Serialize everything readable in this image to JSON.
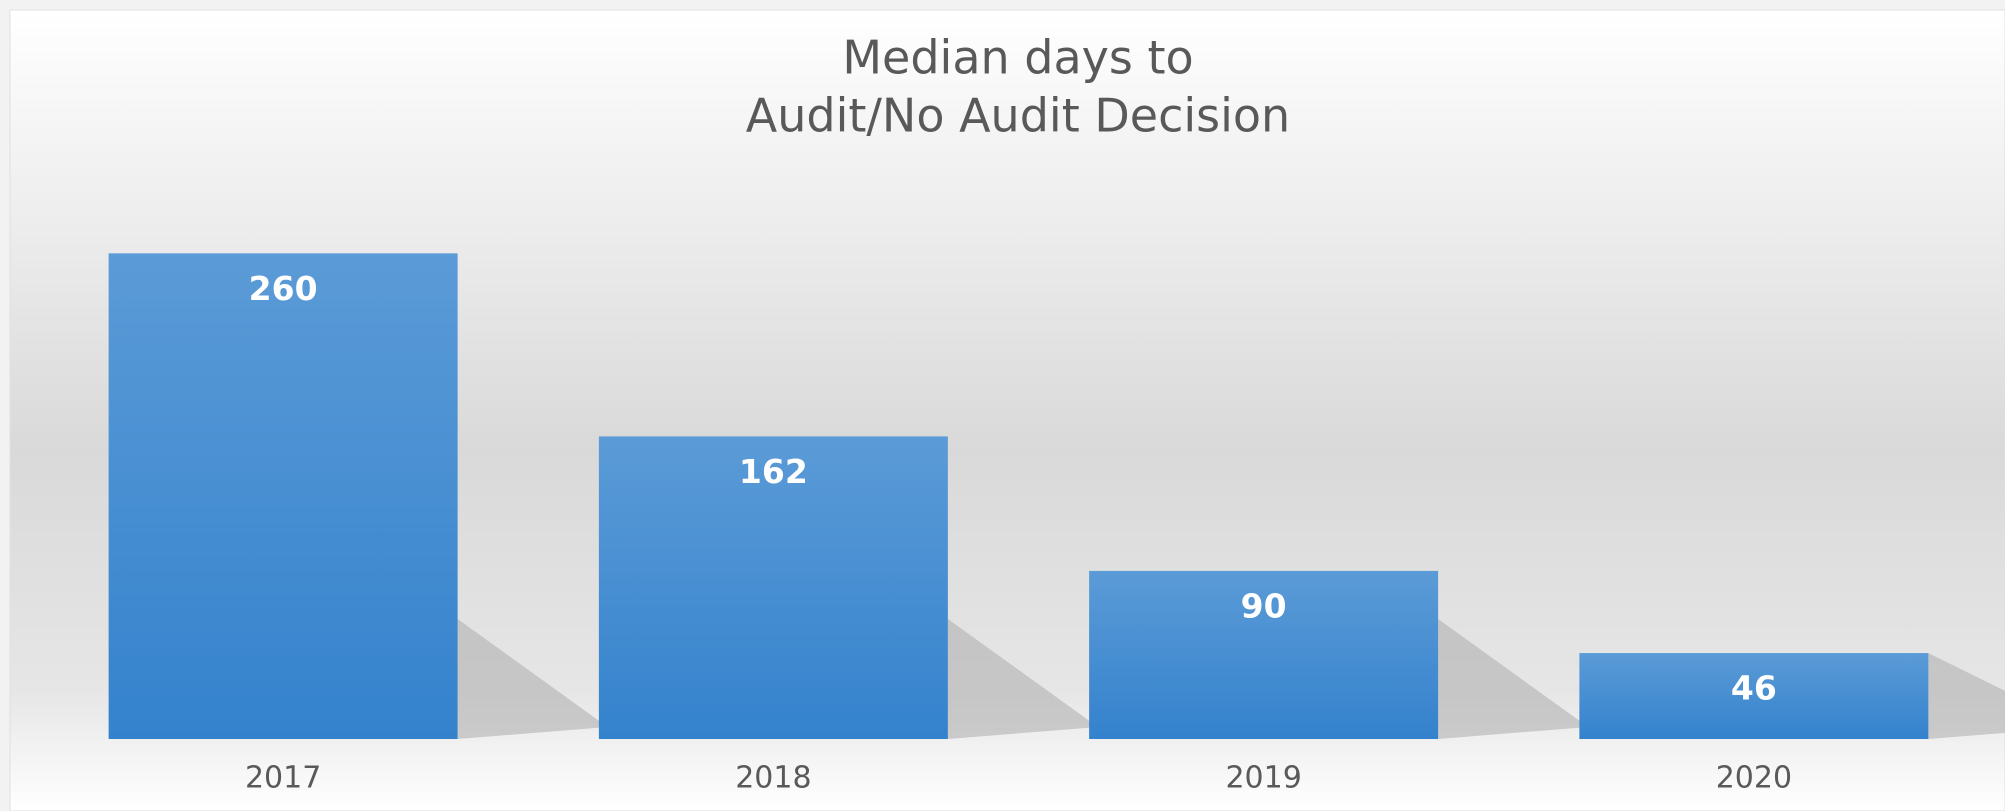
{
  "chart_data": {
    "type": "bar",
    "title": [
      "Median days to",
      "Audit/No Audit Decision"
    ],
    "categories": [
      "2017",
      "2018",
      "2019",
      "2020"
    ],
    "values": [
      260,
      162,
      90,
      46
    ],
    "color": "#3d86cf",
    "ylim": [
      0,
      280
    ]
  }
}
